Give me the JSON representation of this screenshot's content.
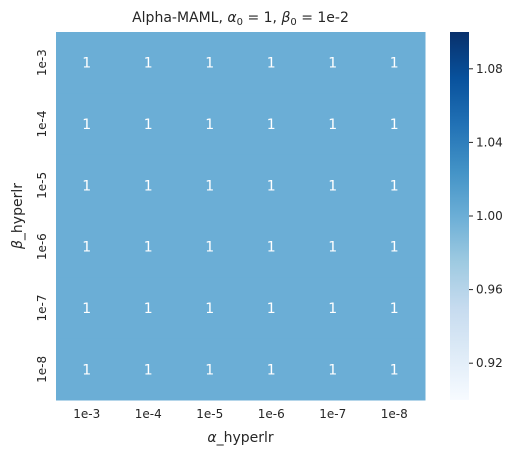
{
  "chart_data": {
    "type": "heatmap",
    "title_parts": [
      {
        "t": "Alpha-MAML, ",
        "i": false
      },
      {
        "t": "α",
        "i": true
      },
      {
        "t": "0",
        "sub": true
      },
      {
        "t": " = 1, ",
        "i": false
      },
      {
        "t": "β",
        "i": true
      },
      {
        "t": "0",
        "sub": true
      },
      {
        "t": " = 1e-2",
        "i": false
      }
    ],
    "xlabel_parts": [
      {
        "t": "α",
        "i": true
      },
      {
        "t": "_hyperlr",
        "i": false
      }
    ],
    "ylabel_parts": [
      {
        "t": "β",
        "i": true
      },
      {
        "t": "_hyperlr",
        "i": false
      }
    ],
    "x_categories": [
      "1e-3",
      "1e-4",
      "1e-5",
      "1e-6",
      "1e-7",
      "1e-8"
    ],
    "y_categories": [
      "1e-3",
      "1e-4",
      "1e-5",
      "1e-6",
      "1e-7",
      "1e-8"
    ],
    "values": [
      [
        1,
        1,
        1,
        1,
        1,
        1
      ],
      [
        1,
        1,
        1,
        1,
        1,
        1
      ],
      [
        1,
        1,
        1,
        1,
        1,
        1
      ],
      [
        1,
        1,
        1,
        1,
        1,
        1
      ],
      [
        1,
        1,
        1,
        1,
        1,
        1
      ],
      [
        1,
        1,
        1,
        1,
        1,
        1
      ]
    ],
    "cell_labels": [
      [
        "1",
        "1",
        "1",
        "1",
        "1",
        "1"
      ],
      [
        "1",
        "1",
        "1",
        "1",
        "1",
        "1"
      ],
      [
        "1",
        "1",
        "1",
        "1",
        "1",
        "1"
      ],
      [
        "1",
        "1",
        "1",
        "1",
        "1",
        "1"
      ],
      [
        "1",
        "1",
        "1",
        "1",
        "1",
        "1"
      ],
      [
        "1",
        "1",
        "1",
        "1",
        "1",
        "1"
      ]
    ],
    "colorbar": {
      "range": [
        0.9,
        1.1
      ],
      "ticks": [
        0.92,
        0.96,
        1.0,
        1.04,
        1.08
      ],
      "tick_labels": [
        "0.92",
        "0.96",
        "1.00",
        "1.04",
        "1.08"
      ],
      "colormap": "Blues",
      "colormap_stops": [
        "#f7fbff",
        "#deebf7",
        "#c6dbef",
        "#9ecae1",
        "#6baed6",
        "#4292c6",
        "#2171b5",
        "#08519c",
        "#08306b"
      ]
    }
  }
}
